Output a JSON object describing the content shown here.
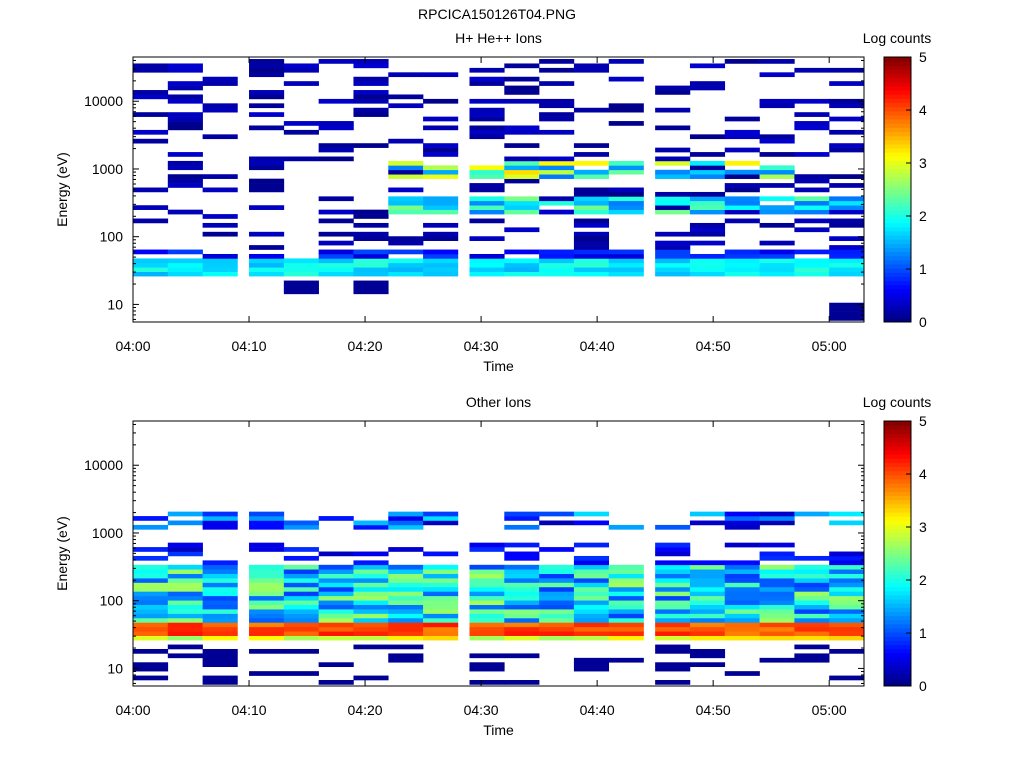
{
  "figure": {
    "title": "RPCICA150126T04.PNG"
  },
  "chart_data": [
    {
      "type": "heatmap",
      "title": "H+ He++ Ions",
      "xlabel": "Time",
      "ylabel": "Energy (eV)",
      "y_scale": "log",
      "ylim": [
        5.5,
        45000
      ],
      "xlim": [
        "04:00",
        "05:03"
      ],
      "x_ticks": [
        "04:00",
        "04:10",
        "04:20",
        "04:30",
        "04:40",
        "04:50",
        "05:00"
      ],
      "y_ticks": [
        "10",
        "100",
        "1000",
        "10000"
      ],
      "time_columns": [
        "04:00",
        "04:03",
        "04:06",
        "04:10",
        "04:13",
        "04:16",
        "04:19",
        "04:22",
        "04:25",
        "04:29",
        "04:32",
        "04:35",
        "04:38",
        "04:41",
        "04:45",
        "04:48",
        "04:51",
        "04:54",
        "04:57",
        "05:00"
      ],
      "colorbar": {
        "label": "Log counts",
        "range": [
          0,
          5
        ],
        "ticks": [
          "0",
          "1",
          "2",
          "3",
          "4",
          "5"
        ]
      },
      "features": [
        {
          "description_energy_eV": [
            28,
            45
          ],
          "time": [
            "04:00",
            "05:00"
          ],
          "log_counts": [
            1.6,
            2.0
          ]
        },
        {
          "description_energy_eV": [
            200,
            400
          ],
          "time": [
            "04:22",
            "05:00"
          ],
          "log_counts": [
            1.6,
            2.4
          ]
        },
        {
          "description_energy_eV": [
            700,
            1200
          ],
          "time": [
            "04:22",
            "04:48"
          ],
          "log_counts": [
            1.8,
            3.4
          ]
        }
      ]
    },
    {
      "type": "heatmap",
      "title": "Other Ions",
      "xlabel": "Time",
      "ylabel": "Energy (eV)",
      "y_scale": "log",
      "ylim": [
        5.5,
        45000
      ],
      "xlim": [
        "04:00",
        "05:03"
      ],
      "x_ticks": [
        "04:00",
        "04:10",
        "04:20",
        "04:30",
        "04:40",
        "04:50",
        "05:00"
      ],
      "y_ticks": [
        "10",
        "100",
        "1000",
        "10000"
      ],
      "time_columns": [
        "04:00",
        "04:03",
        "04:06",
        "04:10",
        "04:13",
        "04:16",
        "04:19",
        "04:22",
        "04:25",
        "04:29",
        "04:32",
        "04:35",
        "04:38",
        "04:41",
        "04:45",
        "04:48",
        "04:51",
        "04:54",
        "04:57",
        "05:00"
      ],
      "colorbar": {
        "label": "Log counts",
        "range": [
          0,
          5
        ],
        "ticks": [
          "0",
          "1",
          "2",
          "3",
          "4",
          "5"
        ]
      },
      "features": [
        {
          "description_energy_eV": [
            30,
            45
          ],
          "time": [
            "04:00",
            "05:00"
          ],
          "log_counts": [
            3.8,
            4.3
          ]
        },
        {
          "description_energy_eV": [
            45,
            330
          ],
          "time": [
            "04:00",
            "05:00"
          ],
          "log_counts": [
            1.0,
            2.6
          ]
        },
        {
          "description_energy_eV": [
            1200,
            2000
          ],
          "time": [
            "04:00",
            "05:00"
          ],
          "log_counts": [
            0.3,
            2.0
          ]
        }
      ]
    }
  ]
}
